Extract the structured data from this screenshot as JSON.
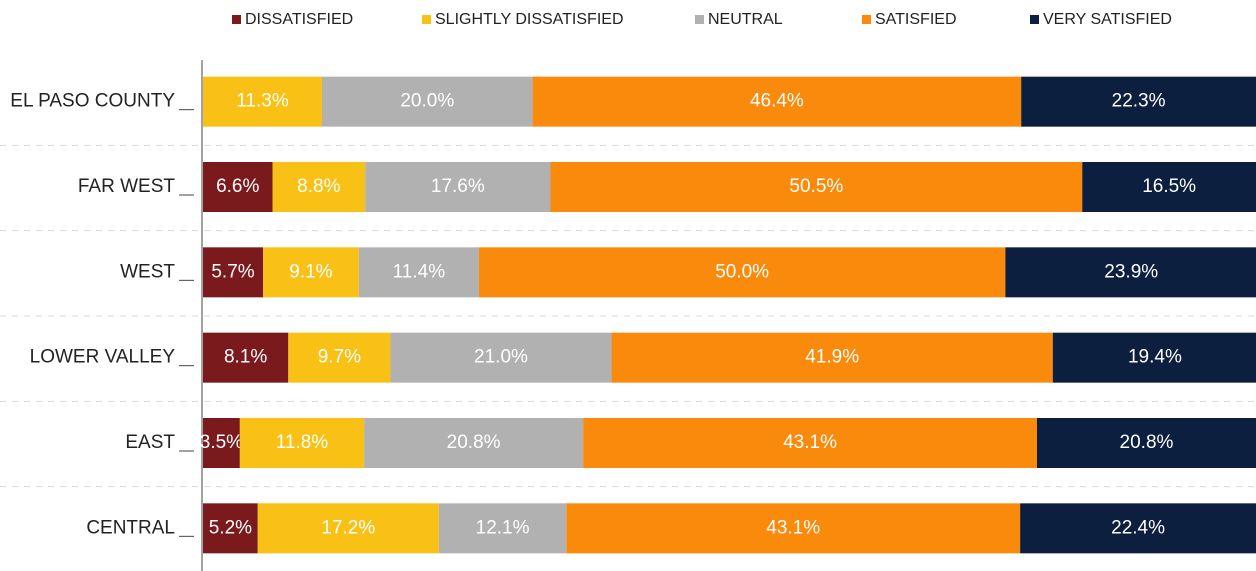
{
  "chart_data": {
    "type": "stacked-barh",
    "categories": [
      "EL PASO COUNTY",
      "FAR WEST",
      "WEST",
      "LOWER VALLEY",
      "EAST",
      "CENTRAL"
    ],
    "xlim": [
      0,
      100
    ],
    "series": [
      {
        "name": "DISSATISFIED",
        "color": "#7a1a1c",
        "values": [
          null,
          6.6,
          5.7,
          8.1,
          3.5,
          5.2
        ],
        "value_labels": [
          null,
          "6.6%",
          "5.7%",
          "8.1%",
          "3.5%",
          "5.2%"
        ]
      },
      {
        "name": "SLIGHTLY DISSATISFIED",
        "color": "#f9c015",
        "values": [
          11.3,
          8.8,
          9.1,
          9.7,
          11.8,
          17.2
        ],
        "value_labels": [
          "11.3%",
          "8.8%",
          "9.1%",
          "9.7%",
          "11.8%",
          "17.2%"
        ]
      },
      {
        "name": "NEUTRAL",
        "color": "#b1b1b1",
        "values": [
          20.0,
          17.6,
          11.4,
          21.0,
          20.8,
          12.1
        ],
        "value_labels": [
          "20.0%",
          "17.6%",
          "11.4%",
          "21.0%",
          "20.8%",
          "12.1%"
        ]
      },
      {
        "name": "SATISFIED",
        "color": "#fa8a0c",
        "values": [
          46.4,
          50.5,
          50.0,
          41.9,
          43.1,
          43.1
        ],
        "value_labels": [
          "46.4%",
          "50.5%",
          "50.0%",
          "41.9%",
          "43.1%",
          "43.1%"
        ]
      },
      {
        "name": "VERY SATISFIED",
        "color": "#0c1f3f",
        "values": [
          22.3,
          16.5,
          23.9,
          19.4,
          20.8,
          22.4
        ],
        "value_labels": [
          "22.3%",
          "16.5%",
          "23.9%",
          "19.4%",
          "20.8%",
          "22.4%"
        ]
      }
    ]
  }
}
